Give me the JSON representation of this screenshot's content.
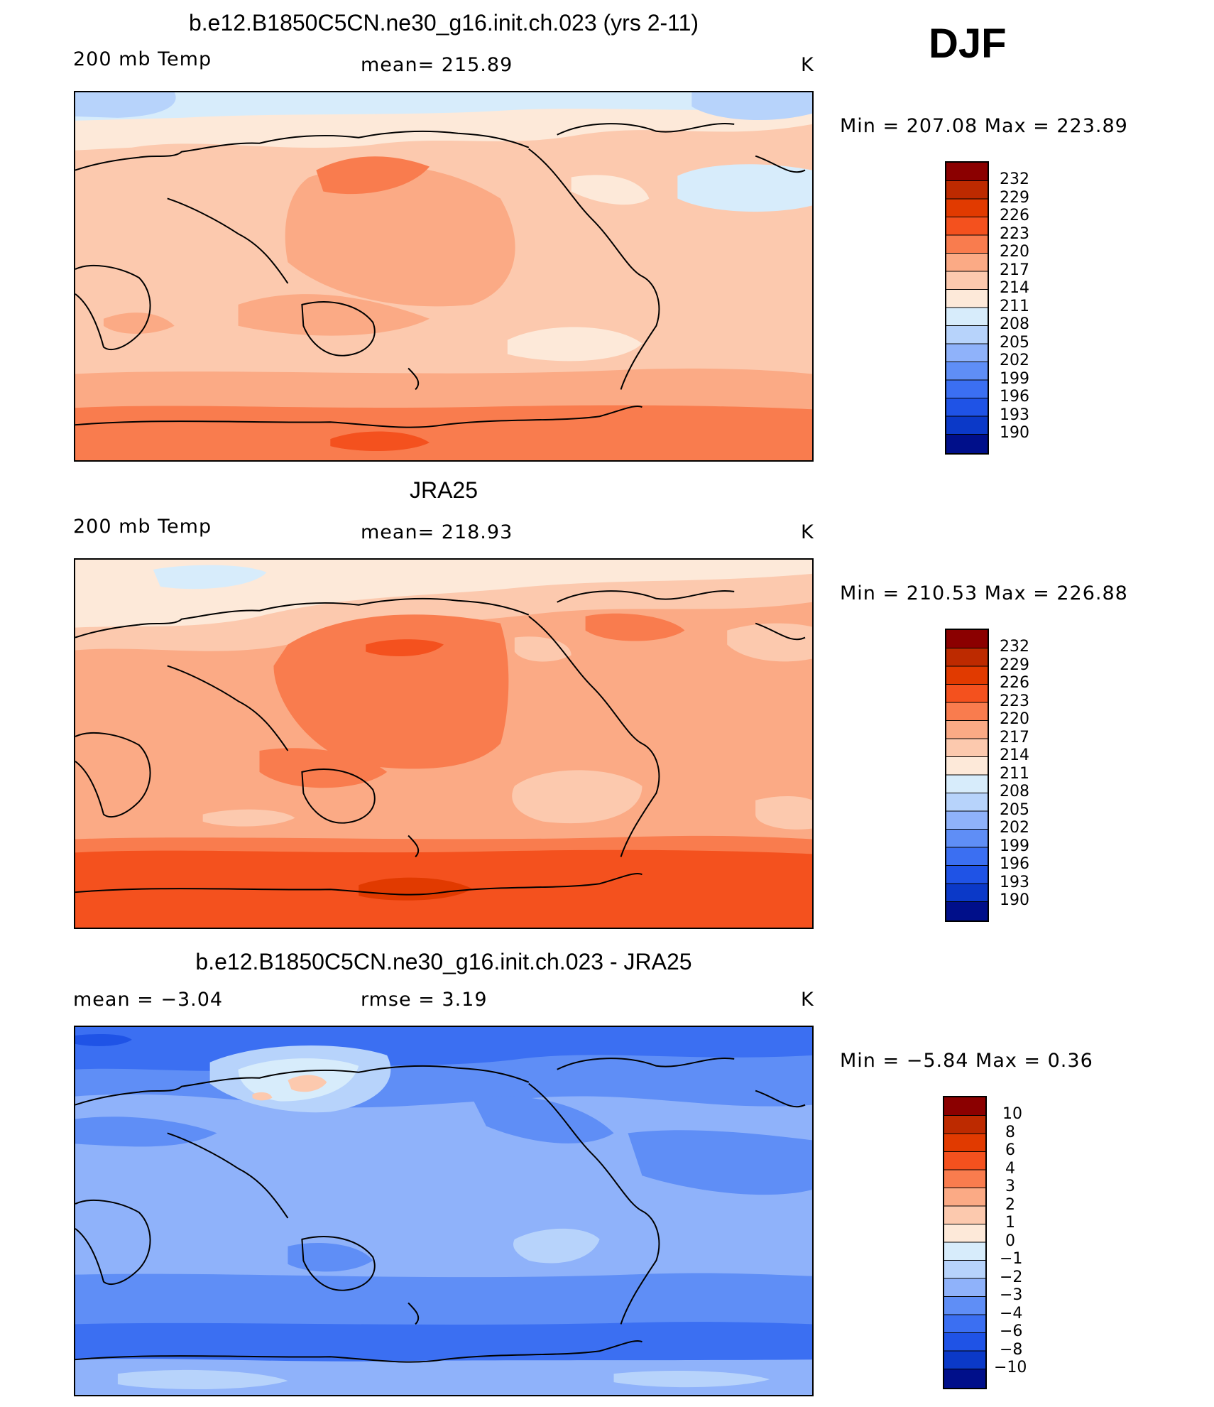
{
  "season": "DJF",
  "colors": {
    "warm": [
      "#fde9d9",
      "#fcc9ae",
      "#fbaa85",
      "#f97c4e",
      "#f4511e",
      "#e13a00",
      "#bd2a00",
      "#8b0000"
    ],
    "cool": [
      "#d7ecfb",
      "#b7d3fb",
      "#8fb2fa",
      "#5f8ef6",
      "#3b6ff2",
      "#1f53e6",
      "#0b39c8",
      "#0523a1",
      "#000f8a"
    ],
    "coast": "#000000"
  },
  "panels": [
    {
      "title": "b.e12.B1850C5CN.ne30_g16.init.ch.023 (yrs 2-11)",
      "left_label": "200 mb Temp",
      "center_label": "mean=  215.89",
      "unit": "K",
      "minmax": "Min  =  207.08  Max  =  223.89",
      "colorbar": [
        "232",
        "229",
        "226",
        "223",
        "220",
        "217",
        "214",
        "211",
        "208",
        "205",
        "202",
        "199",
        "196",
        "193",
        "190"
      ]
    },
    {
      "title": "JRA25",
      "left_label": "200 mb Temp",
      "center_label": "mean=  218.93",
      "unit": "K",
      "minmax": "Min  =  210.53  Max  =  226.88",
      "colorbar": [
        "232",
        "229",
        "226",
        "223",
        "220",
        "217",
        "214",
        "211",
        "208",
        "205",
        "202",
        "199",
        "196",
        "193",
        "190"
      ]
    },
    {
      "title": "b.e12.B1850C5CN.ne30_g16.init.ch.023 - JRA25",
      "left_label": "mean  =    −3.04",
      "center_label": "rmse  =      3.19",
      "unit": "K",
      "minmax": "Min  =     −5.84  Max  =      0.36",
      "colorbar": [
        "10",
        "8",
        "6",
        "4",
        "3",
        "2",
        "1",
        "0",
        "−1",
        "−2",
        "−3",
        "−4",
        "−6",
        "−8",
        "−10"
      ]
    }
  ]
}
